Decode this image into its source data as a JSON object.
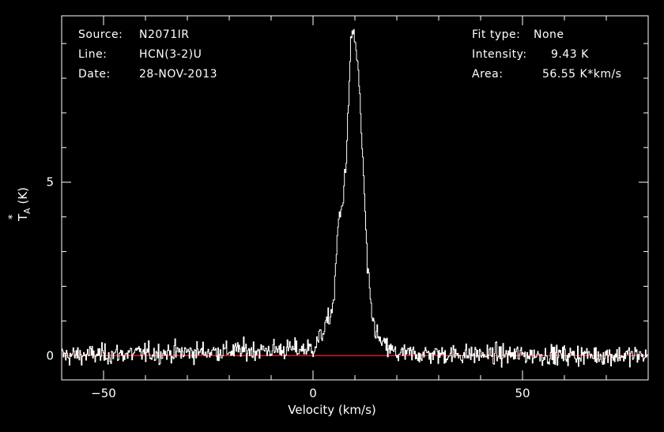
{
  "header_left": {
    "source_label": "Source:",
    "source_value": "N2071IR",
    "line_label": "Line:",
    "line_value": "HCN(3-2)U",
    "date_label": "Date:",
    "date_value": "28-NOV-2013"
  },
  "header_right": {
    "fit_label": "Fit type:",
    "fit_value": "None",
    "intensity_label": "Intensity:",
    "intensity_value": "9.43 K",
    "area_label": "Area:",
    "area_value": "56.55 K*km/s"
  },
  "colors": {
    "background": "#000000",
    "frame": "#ffffff",
    "spectrum": "#ffffff",
    "baseline": "#ff2020"
  },
  "chart_data": {
    "type": "line",
    "xlabel": "Velocity (km/s)",
    "ylabel": "T*A (K)",
    "xlim": [
      -60,
      80
    ],
    "ylim": [
      -0.7,
      9.8
    ],
    "x_ticks": [
      -50,
      0,
      50
    ],
    "y_ticks": [
      0,
      5
    ],
    "baseline_y": 0,
    "noise_rms_K": 0.2,
    "series": [
      {
        "x": [
          -60,
          0,
          2,
          4,
          5,
          6,
          7,
          8,
          9,
          9.5,
          10,
          10.5,
          11,
          12,
          13,
          14,
          15,
          16,
          18,
          20,
          80
        ],
        "values": [
          0,
          0.2,
          0.6,
          1.1,
          1.6,
          3.8,
          4.3,
          5.8,
          8.9,
          9.43,
          9.1,
          8.6,
          7.8,
          5.4,
          2.5,
          1.2,
          0.7,
          0.4,
          0.2,
          0.05,
          0
        ]
      }
    ]
  }
}
